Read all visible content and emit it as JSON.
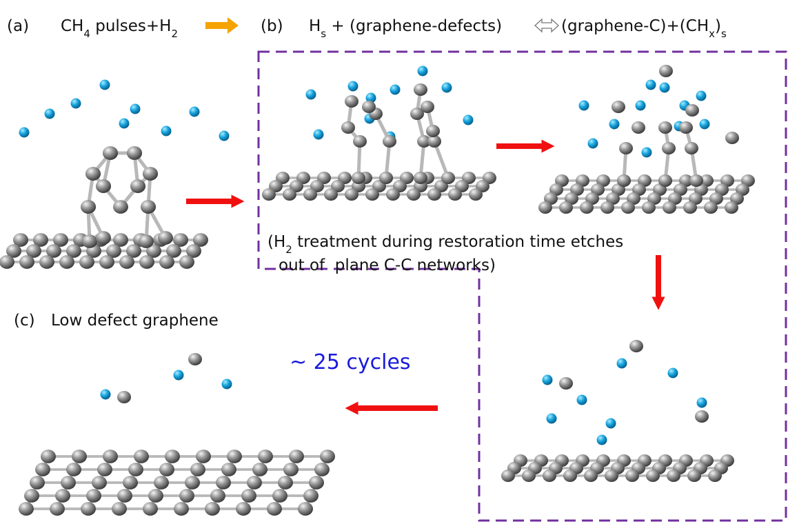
{
  "panel_a": {
    "label": "(a)",
    "formula": [
      "CH",
      "4",
      " pulses+H",
      "2"
    ]
  },
  "panel_b": {
    "label": "(b)",
    "reaction_left": [
      "H",
      "s",
      " + (graphene-defects)"
    ],
    "reaction_right": [
      "(graphene-C)+(CH",
      "x",
      ")",
      "s"
    ],
    "note_line1": [
      "(H",
      "2",
      " treatment during restoration time etches"
    ],
    "note_line2": "out of  plane C-C networks)"
  },
  "panel_c": {
    "label": "(c)",
    "caption": "Low defect graphene"
  },
  "cycles": "~ 25 cycles"
}
